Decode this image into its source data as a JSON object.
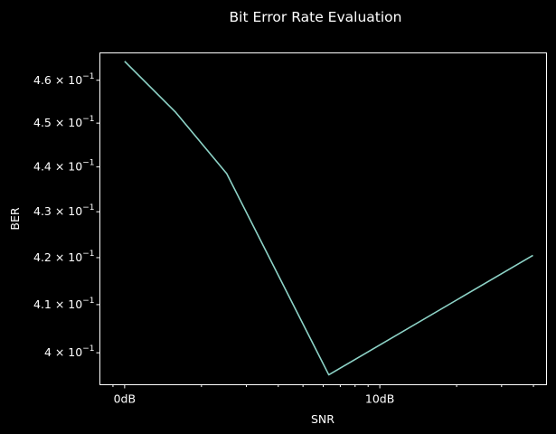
{
  "chart_data": {
    "type": "line",
    "title": "Bit Error Rate Evaluation",
    "xlabel": "SNR",
    "ylabel": "BER",
    "x_scale": "log",
    "y_scale": "log",
    "x_ticks": [
      {
        "value": 1,
        "label": "0dB"
      },
      {
        "value": 10,
        "label": "10dB"
      }
    ],
    "y_ticks": [
      {
        "value": 0.4,
        "label": "4 × 10",
        "exp": "−1"
      },
      {
        "value": 0.41,
        "label": "4.1 × 10",
        "exp": "−1"
      },
      {
        "value": 0.42,
        "label": "4.2 × 10",
        "exp": "−1"
      },
      {
        "value": 0.43,
        "label": "4.3 × 10",
        "exp": "−1"
      },
      {
        "value": 0.44,
        "label": "4.4 × 10",
        "exp": "−1"
      },
      {
        "value": 0.45,
        "label": "4.5 × 10",
        "exp": "−1"
      },
      {
        "value": 0.46,
        "label": "4.6 × 10",
        "exp": "−1"
      }
    ],
    "xlim": [
      0.8,
      45
    ],
    "ylim": [
      0.3935,
      0.4665
    ],
    "series": [
      {
        "x": [
          1,
          1.585,
          2.512,
          6.31,
          39.81
        ],
        "y": [
          0.4645,
          0.4525,
          0.4385,
          0.3955,
          0.4205
        ]
      }
    ],
    "colors": {
      "background": "#000000",
      "foreground": "#ffffff",
      "series": "#8dd3c7"
    },
    "grid": false,
    "legend": "none"
  }
}
